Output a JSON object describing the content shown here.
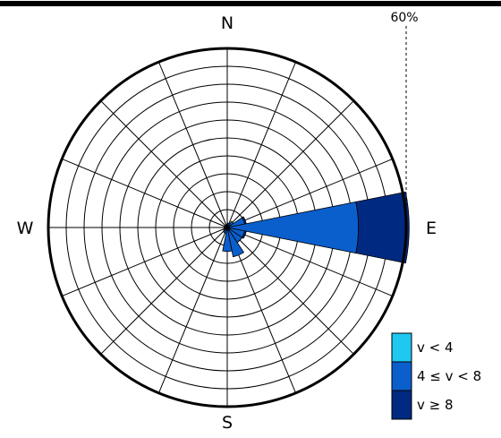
{
  "chart_data": {
    "type": "wind-rose",
    "directions": [
      "N",
      "E",
      "S",
      "W"
    ],
    "max_label": "60%",
    "rmax_percent": 60,
    "ring_step_percent": 6,
    "spoke_count": 16,
    "sector_width_deg": 22.5,
    "bins": [
      {
        "name": "v < 4",
        "color": "#1ec8f0"
      },
      {
        "name": "4 ≤ v < 8",
        "color": "#0a5fcc"
      },
      {
        "name": "v ≥ 8",
        "color": "#002a82"
      }
    ],
    "sectors": [
      {
        "direction": "N",
        "values": [
          0.5,
          0.5,
          0.0
        ]
      },
      {
        "direction": "NNE",
        "values": [
          0.5,
          1.0,
          0.0
        ]
      },
      {
        "direction": "NE",
        "values": [
          1.0,
          1.5,
          0.0
        ]
      },
      {
        "direction": "ENE",
        "values": [
          0.5,
          5.5,
          0.5
        ]
      },
      {
        "direction": "E",
        "values": [
          0.0,
          44.0,
          17.0
        ]
      },
      {
        "direction": "ESE",
        "values": [
          0.5,
          5.5,
          0.5
        ]
      },
      {
        "direction": "SE",
        "values": [
          1.0,
          5.0,
          0.0
        ]
      },
      {
        "direction": "SSE",
        "values": [
          1.0,
          9.0,
          0.0
        ]
      },
      {
        "direction": "S",
        "values": [
          0.5,
          7.5,
          0.0
        ]
      },
      {
        "direction": "SSW",
        "values": [
          0.5,
          1.5,
          0.0
        ]
      },
      {
        "direction": "SW",
        "values": [
          0.5,
          1.0,
          0.0
        ]
      },
      {
        "direction": "WSW",
        "values": [
          0.5,
          0.5,
          0.0
        ]
      },
      {
        "direction": "W",
        "values": [
          0.5,
          0.5,
          0.0
        ]
      },
      {
        "direction": "WNW",
        "values": [
          0.5,
          0.5,
          0.0
        ]
      },
      {
        "direction": "NW",
        "values": [
          0.5,
          0.5,
          0.0
        ]
      },
      {
        "direction": "NNW",
        "values": [
          0.5,
          0.5,
          0.0
        ]
      }
    ]
  }
}
